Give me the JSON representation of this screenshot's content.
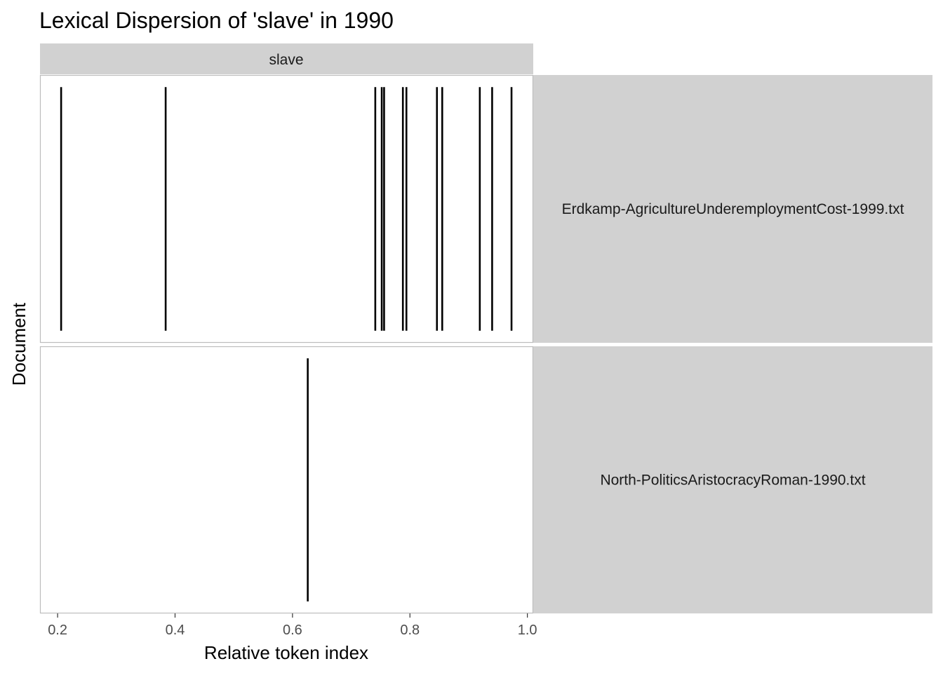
{
  "chart_data": {
    "type": "lexical-dispersion",
    "title": "Lexical Dispersion of 'slave' in 1990",
    "xlabel": "Relative token index",
    "ylabel": "Document",
    "facet_column": "slave",
    "xlim": [
      0.17,
      1.01
    ],
    "x_ticks": [
      0.2,
      0.4,
      0.6,
      0.8,
      1.0
    ],
    "x_tick_labels": [
      "0.2",
      "0.4",
      "0.6",
      "0.8",
      "1.0"
    ],
    "grid": false,
    "colors": {
      "strip": "#d1d1d1",
      "panel_border": "#bdbdbd",
      "mark": "#000000",
      "tick_text": "#4d4d4d"
    },
    "panels": [
      {
        "document": "Erdkamp-AgricultureUnderemploymentCost-1999.txt",
        "positions": [
          0.206,
          0.384,
          0.741,
          0.752,
          0.756,
          0.788,
          0.794,
          0.846,
          0.855,
          0.919,
          0.94,
          0.973
        ]
      },
      {
        "document": "North-PoliticsAristocracyRoman-1990.txt",
        "positions": [
          0.626
        ]
      }
    ]
  }
}
